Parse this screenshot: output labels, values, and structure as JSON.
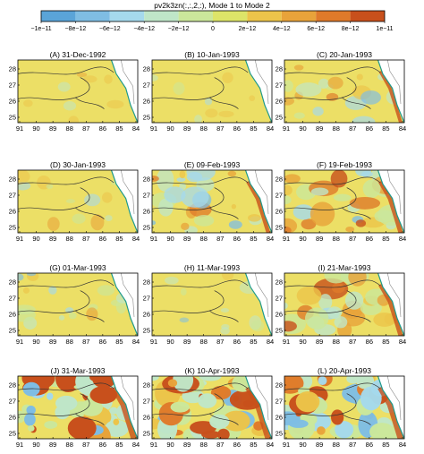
{
  "colorbar": {
    "title": "pv2k3zn(:,:,2,:), Mode 1 to Mode 2",
    "tick_labels": [
      "−1e−11",
      "−8e−12",
      "−6e−12",
      "−4e−12",
      "−2e−12",
      "0",
      "2e−12",
      "4e−12",
      "6e−12",
      "8e−12",
      "1e−11"
    ],
    "colors": [
      "#5aa4d8",
      "#7fbde3",
      "#a5d9ec",
      "#bfe6c8",
      "#cbe79b",
      "#dde468",
      "#ecc44a",
      "#e8a33a",
      "#df7a2a",
      "#c8501c"
    ],
    "base_color": "#ecdf66",
    "outline_color": "#333333",
    "boundary_color": "#1f9a8c"
  },
  "chart_data": {
    "type": "heatmap",
    "x_tick_labels": [
      "91",
      "90",
      "89",
      "88",
      "87",
      "86",
      "85",
      "84"
    ],
    "y_tick_labels": [
      "28",
      "27",
      "26",
      "25"
    ],
    "panels": [
      {
        "title": "(A) 31-Dec-1992",
        "intensity": 0.05
      },
      {
        "title": "(B) 10-Jan-1993",
        "intensity": 0.05
      },
      {
        "title": "(C) 20-Jan-1993",
        "intensity": 0.35
      },
      {
        "title": "(D) 30-Jan-1993",
        "intensity": 0.15
      },
      {
        "title": "(E) 09-Feb-1993",
        "intensity": 0.5
      },
      {
        "title": "(F) 19-Feb-1993",
        "intensity": 0.6
      },
      {
        "title": "(G) 01-Mar-1993",
        "intensity": 0.3
      },
      {
        "title": "(H) 11-Mar-1993",
        "intensity": 0.1
      },
      {
        "title": "(I) 21-Mar-1993",
        "intensity": 0.6
      },
      {
        "title": "(J) 31-Mar-1993",
        "intensity": 1.0
      },
      {
        "title": "(K) 10-Apr-1993",
        "intensity": 0.95
      },
      {
        "title": "(L) 20-Apr-1993",
        "intensity": 0.95
      }
    ]
  }
}
